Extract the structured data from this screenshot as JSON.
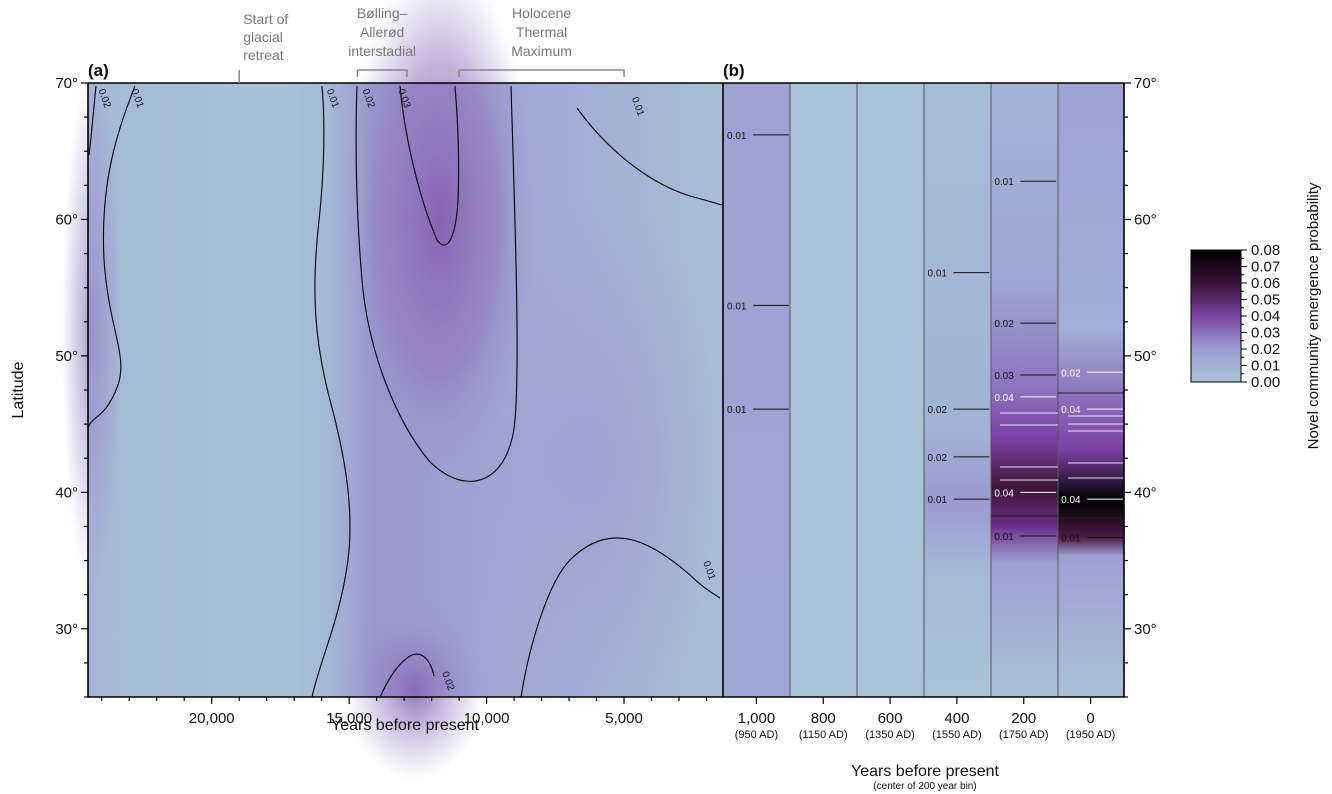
{
  "colors": {
    "low": "#a9c3d6",
    "mid": "#9c95cd",
    "purple": "#7a46a3",
    "dark": "#360f30",
    "black": "#000000"
  },
  "chart_data": [
    {
      "type": "heatmap",
      "panel_label": "(a)",
      "xlabel": "Years before present",
      "ylabel": "Latitude",
      "x_ticks": [
        20000,
        15000,
        10000,
        5000
      ],
      "x_tick_labels": [
        "20,000",
        "15,000",
        "10,000",
        "5,000"
      ],
      "xlim": [
        24500,
        1400
      ],
      "y_ticks": [
        30,
        40,
        50,
        60,
        70
      ],
      "y_tick_labels": [
        "30°",
        "40°",
        "50°",
        "60°",
        "70°"
      ],
      "ylim": [
        25,
        70
      ],
      "periods": [
        {
          "label": [
            "Start of",
            "glacial",
            "retreat"
          ],
          "year": 19000
        },
        {
          "label": [
            "Bølling–",
            "Allerød",
            "interstadial"
          ],
          "start": 14700,
          "end": 12900
        },
        {
          "label": [
            "Holocene",
            "Thermal",
            "Maximum"
          ],
          "start": 11000,
          "end": 5000
        }
      ],
      "contour_labels": [
        {
          "text": "0.02",
          "year": 24000,
          "lat": 68.8
        },
        {
          "text": "0.01",
          "year": 22800,
          "lat": 68.8
        },
        {
          "text": "0.01",
          "year": 15700,
          "lat": 68.8
        },
        {
          "text": "0.02",
          "year": 14400,
          "lat": 68.8
        },
        {
          "text": "0.03",
          "year": 13100,
          "lat": 68.8
        },
        {
          "text": "0.01",
          "year": 4600,
          "lat": 68.2
        },
        {
          "text": "0.01",
          "year": 2000,
          "lat": 34.2
        },
        {
          "text": "0.02",
          "year": 11500,
          "lat": 26.1
        }
      ]
    },
    {
      "type": "heatmap",
      "panel_label": "(b)",
      "xlabel": "Years before present",
      "xlabel_sub": "(center of 200 year bin)",
      "ylim": [
        25,
        70
      ],
      "y_ticks": [
        30,
        40,
        50,
        60,
        70
      ],
      "y_tick_labels": [
        "30°",
        "40°",
        "50°",
        "60°",
        "70°"
      ],
      "bins": [
        {
          "label": "1,000",
          "sub": "(950 AD)"
        },
        {
          "label": "800",
          "sub": "(1150 AD)"
        },
        {
          "label": "600",
          "sub": "(1350 AD)"
        },
        {
          "label": "400",
          "sub": "(1550 AD)"
        },
        {
          "label": "200",
          "sub": "(1750 AD)"
        },
        {
          "label": "0",
          "sub": "(1950 AD)"
        }
      ],
      "contour_labels": [
        {
          "bin": 0,
          "text": "0.01",
          "lat": 66.2
        },
        {
          "bin": 0,
          "text": "0.01",
          "lat": 53.7
        },
        {
          "bin": 0,
          "text": "0.01",
          "lat": 46.1
        },
        {
          "bin": 3,
          "text": "0.01",
          "lat": 56.1
        },
        {
          "bin": 3,
          "text": "0.02",
          "lat": 46.1
        },
        {
          "bin": 3,
          "text": "0.02",
          "lat": 42.6
        },
        {
          "bin": 3,
          "text": "0.01",
          "lat": 39.5
        },
        {
          "bin": 4,
          "text": "0.01",
          "lat": 62.8
        },
        {
          "bin": 4,
          "text": "0.02",
          "lat": 52.4
        },
        {
          "bin": 4,
          "text": "0.03",
          "lat": 48.6
        },
        {
          "bin": 4,
          "text": "0.04",
          "lat": 47.0
        },
        {
          "bin": 4,
          "text": "0.04",
          "lat": 40.0
        },
        {
          "bin": 4,
          "text": "0.01",
          "lat": 36.8
        },
        {
          "bin": 5,
          "text": "0.02",
          "lat": 48.8
        },
        {
          "bin": 5,
          "text": "0.04",
          "lat": 46.1
        },
        {
          "bin": 5,
          "text": "0.04",
          "lat": 39.5
        },
        {
          "bin": 5,
          "text": "0.01",
          "lat": 36.7
        }
      ]
    }
  ],
  "colorbar": {
    "label": "Novel community emergence probability",
    "ticks": [
      0.0,
      0.01,
      0.02,
      0.03,
      0.04,
      0.05,
      0.06,
      0.07,
      0.08
    ],
    "tick_labels": [
      "0.00",
      "0.01",
      "0.02",
      "0.03",
      "0.04",
      "0.05",
      "0.06",
      "0.07",
      "0.08"
    ],
    "range": [
      0.0,
      0.08
    ]
  }
}
